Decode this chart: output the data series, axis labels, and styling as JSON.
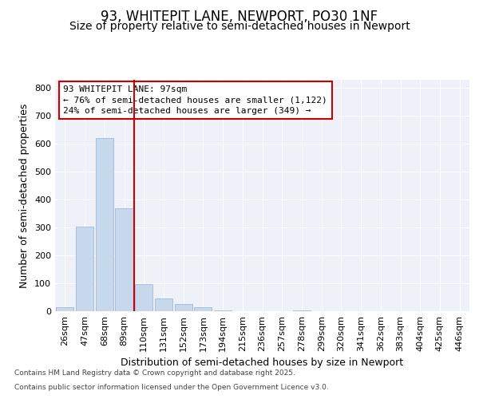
{
  "title_line1": "93, WHITEPIT LANE, NEWPORT, PO30 1NF",
  "title_line2": "Size of property relative to semi-detached houses in Newport",
  "xlabel": "Distribution of semi-detached houses by size in Newport",
  "ylabel": "Number of semi-detached properties",
  "categories": [
    "26sqm",
    "47sqm",
    "68sqm",
    "89sqm",
    "110sqm",
    "131sqm",
    "152sqm",
    "173sqm",
    "194sqm",
    "215sqm",
    "236sqm",
    "257sqm",
    "278sqm",
    "299sqm",
    "320sqm",
    "341sqm",
    "362sqm",
    "383sqm",
    "404sqm",
    "425sqm",
    "446sqm"
  ],
  "values": [
    15,
    302,
    620,
    370,
    97,
    47,
    25,
    13,
    3,
    0,
    0,
    0,
    2,
    0,
    0,
    0,
    0,
    0,
    0,
    0,
    0
  ],
  "bar_color": "#c8d8ec",
  "bar_edge_color": "#a0b8d8",
  "vline_x_index": 3,
  "vline_color": "#cc0000",
  "annotation_text_line1": "93 WHITEPIT LANE: 97sqm",
  "annotation_text_line2": "← 76% of semi-detached houses are smaller (1,122)",
  "annotation_text_line3": "24% of semi-detached houses are larger (349) →",
  "annotation_box_color": "#cc0000",
  "ylim": [
    0,
    830
  ],
  "yticks": [
    0,
    100,
    200,
    300,
    400,
    500,
    600,
    700,
    800
  ],
  "background_color": "#ffffff",
  "plot_bg_color": "#eef2f8",
  "footer_line1": "Contains HM Land Registry data © Crown copyright and database right 2025.",
  "footer_line2": "Contains public sector information licensed under the Open Government Licence v3.0.",
  "title_fontsize": 12,
  "subtitle_fontsize": 10,
  "axis_label_fontsize": 9,
  "tick_fontsize": 8,
  "annotation_fontsize": 8,
  "footer_fontsize": 6.5
}
